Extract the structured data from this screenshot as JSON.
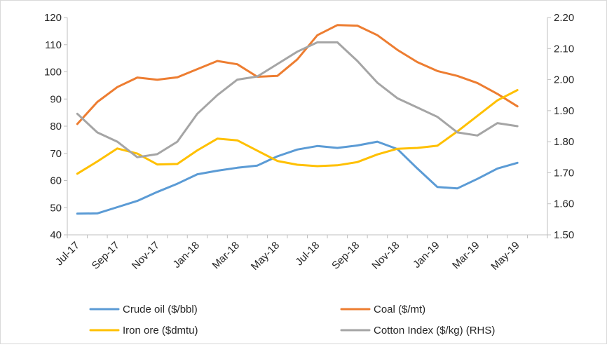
{
  "chart_data": {
    "type": "line",
    "title": "",
    "x": [
      "Jul-17",
      "Aug-17",
      "Sep-17",
      "Oct-17",
      "Nov-17",
      "Dec-17",
      "Jan-18",
      "Feb-18",
      "Mar-18",
      "Apr-18",
      "May-18",
      "Jun-18",
      "Jul-18",
      "Aug-18",
      "Sep-18",
      "Oct-18",
      "Nov-18",
      "Dec-18",
      "Jan-19",
      "Feb-19",
      "Mar-19",
      "Apr-19",
      "May-19",
      "Jun-19"
    ],
    "x_tick_labels": [
      "Jul-17",
      "Sep-17",
      "Nov-17",
      "Jan-18",
      "Mar-18",
      "May-18",
      "Jul-18",
      "Sep-18",
      "Nov-18",
      "Jan-19",
      "Mar-19",
      "May-19"
    ],
    "y_left": {
      "lim": [
        40,
        120
      ],
      "ticks": [
        "40",
        "50",
        "60",
        "70",
        "80",
        "90",
        "100",
        "110",
        "120"
      ]
    },
    "y_right": {
      "lim": [
        1.5,
        2.2
      ],
      "ticks": [
        "1.50",
        "1.60",
        "1.70",
        "1.80",
        "1.90",
        "2.00",
        "2.10",
        "2.20"
      ]
    },
    "grid": false,
    "legend_position": "bottom",
    "series": [
      {
        "name": "Crude oil ($/bbl)",
        "axis": "left",
        "color": "#5b9bd5",
        "values": [
          47.8,
          47.9,
          50.2,
          52.5,
          55.8,
          58.8,
          62.3,
          63.6,
          64.7,
          65.5,
          68.9,
          71.4,
          72.7,
          72.0,
          72.9,
          74.3,
          71.6,
          64.4,
          57.6,
          57.1,
          60.6,
          64.4,
          66.5,
          null
        ]
      },
      {
        "name": "Coal ($/mt)",
        "axis": "left",
        "color": "#ed7d31",
        "values": [
          80.8,
          88.9,
          94.4,
          97.9,
          97.1,
          98.0,
          101.0,
          104.0,
          102.8,
          98.2,
          98.5,
          104.6,
          113.5,
          117.2,
          117.0,
          113.5,
          108.1,
          103.6,
          100.3,
          98.5,
          95.9,
          91.9,
          87.3,
          null
        ]
      },
      {
        "name": "Iron ore ($dmtu)",
        "axis": "left",
        "color": "#ffc000",
        "values": [
          62.5,
          67.0,
          71.8,
          69.9,
          65.9,
          66.1,
          71.1,
          75.4,
          74.8,
          71.0,
          67.2,
          65.8,
          65.3,
          65.6,
          66.8,
          69.6,
          71.7,
          72.0,
          72.8,
          78.1,
          83.8,
          89.5,
          93.3,
          null
        ]
      },
      {
        "name": "Cotton Index ($/kg) (RHS)",
        "axis": "right",
        "color": "#a5a5a5",
        "values": [
          1.89,
          1.83,
          1.8,
          1.75,
          1.76,
          1.8,
          1.89,
          1.95,
          2.0,
          2.01,
          2.05,
          2.09,
          2.12,
          2.12,
          2.06,
          1.99,
          1.94,
          1.91,
          1.88,
          1.83,
          1.82,
          1.86,
          1.85,
          null
        ]
      }
    ]
  }
}
